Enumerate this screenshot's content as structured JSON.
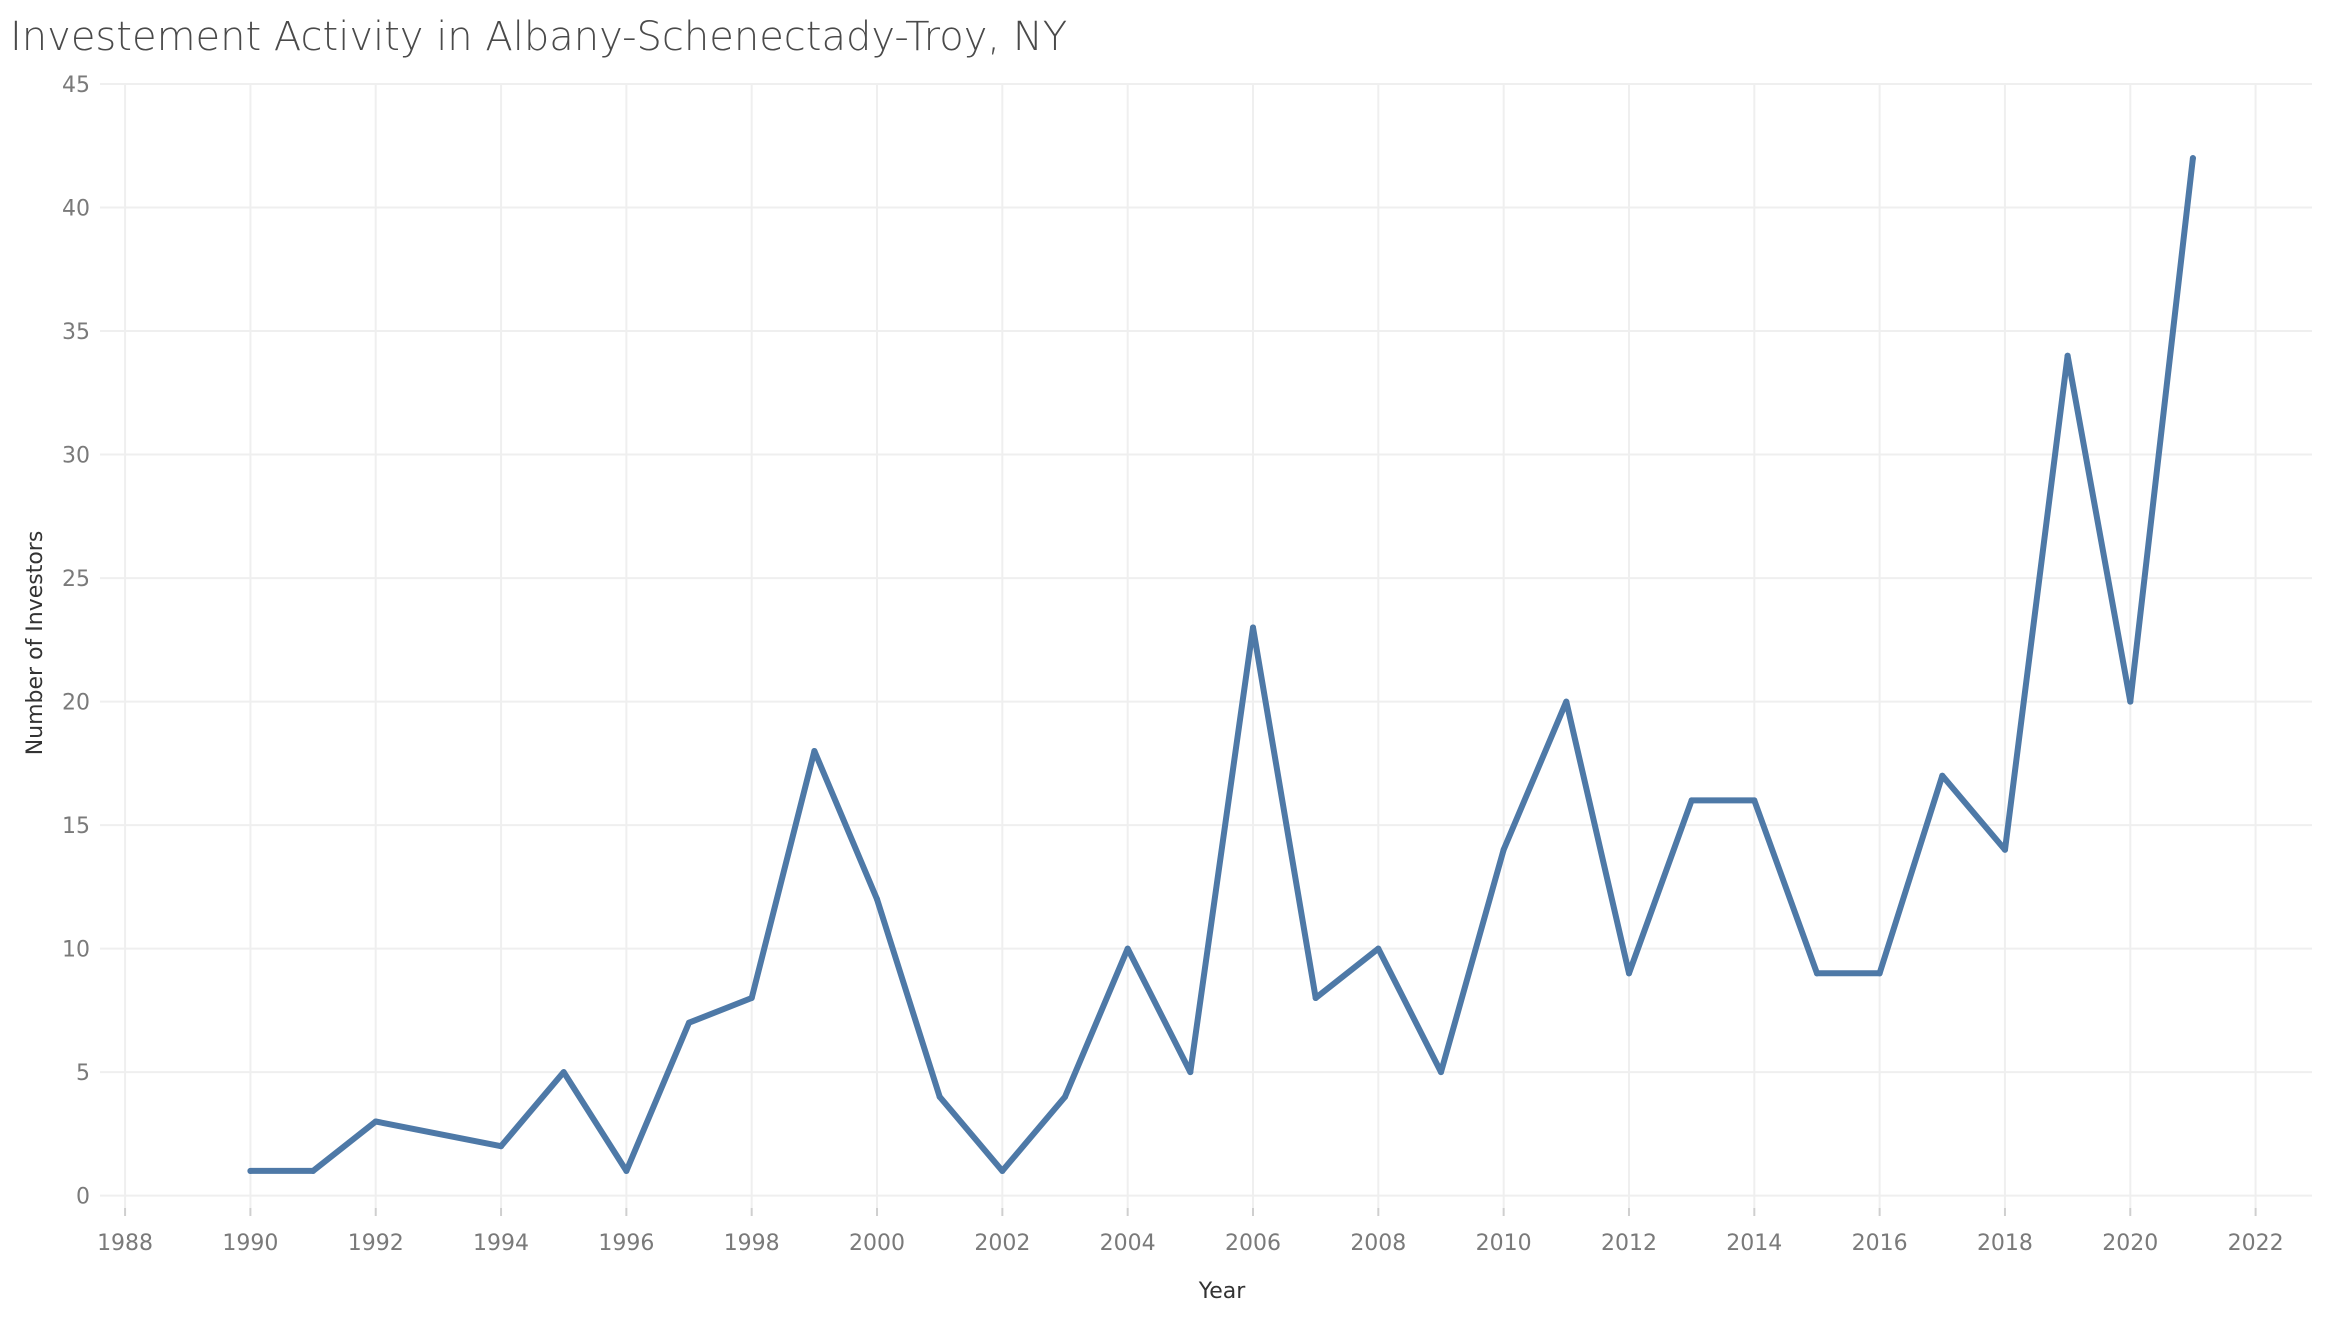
{
  "chart_data": {
    "type": "line",
    "title": "Investement Activity in Albany-Schenectady-Troy, NY",
    "xlabel": "Year",
    "ylabel": "Number of Investors",
    "xlim": [
      1987.6,
      2022.9
    ],
    "ylim": [
      -0.5,
      45
    ],
    "xticks": [
      1988,
      1990,
      1992,
      1994,
      1996,
      1998,
      2000,
      2002,
      2004,
      2006,
      2008,
      2010,
      2012,
      2014,
      2016,
      2018,
      2020,
      2022
    ],
    "yticks": [
      0,
      5,
      10,
      15,
      20,
      25,
      30,
      35,
      40,
      45
    ],
    "grid": true,
    "series": [
      {
        "color": "#4e79a7",
        "x": [
          1990,
          1991,
          1992,
          1994,
          1995,
          1996,
          1997,
          1998,
          1999,
          2000,
          2001,
          2002,
          2003,
          2004,
          2005,
          2006,
          2007,
          2008,
          2009,
          2010,
          2011,
          2012,
          2013,
          2014,
          2015,
          2016,
          2017,
          2018,
          2019,
          2020,
          2021
        ],
        "y": [
          1,
          1,
          3,
          2,
          5,
          1,
          7,
          8,
          18,
          12,
          4,
          1,
          4,
          10,
          5,
          23,
          8,
          10,
          5,
          14,
          20,
          9,
          16,
          16,
          9,
          9,
          17,
          14,
          34,
          20,
          42
        ]
      }
    ]
  },
  "style": {
    "grid_color": "#efefef",
    "tick_color": "#7a7a7a",
    "axis_title_color": "#333333"
  }
}
